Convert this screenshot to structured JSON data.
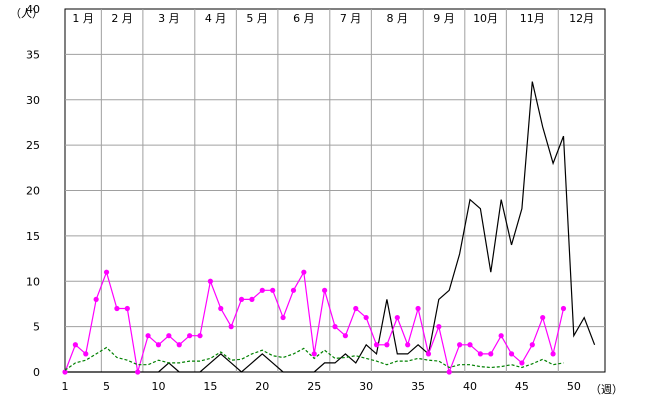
{
  "chart_data": {
    "type": "line",
    "ylabel": "（人）",
    "xlabel": "（週）",
    "ylim": [
      0,
      40
    ],
    "yticks": [
      0,
      5,
      10,
      15,
      20,
      25,
      30,
      35,
      40
    ],
    "xlim": [
      1,
      53
    ],
    "xticks": [
      1,
      5,
      10,
      15,
      20,
      25,
      30,
      35,
      40,
      45,
      50
    ],
    "grid": true,
    "months": [
      {
        "label": "1 月",
        "start_week": 1
      },
      {
        "label": "2 月",
        "start_week": 5
      },
      {
        "label": "3 月",
        "start_week": 9
      },
      {
        "label": "4 月",
        "start_week": 14
      },
      {
        "label": "5 月",
        "start_week": 18
      },
      {
        "label": "6 月",
        "start_week": 22
      },
      {
        "label": "7 月",
        "start_week": 27
      },
      {
        "label": "8 月",
        "start_week": 31
      },
      {
        "label": "9 月",
        "start_week": 36
      },
      {
        "label": "10月",
        "start_week": 40
      },
      {
        "label": "11月",
        "start_week": 44
      },
      {
        "label": "12月",
        "start_week": 49
      }
    ],
    "series": [
      {
        "color": "#000000",
        "style": "solid",
        "marker": "none",
        "x": [
          1,
          2,
          3,
          4,
          5,
          6,
          7,
          8,
          9,
          10,
          11,
          12,
          13,
          14,
          15,
          16,
          17,
          18,
          19,
          20,
          21,
          22,
          23,
          24,
          25,
          26,
          27,
          28,
          29,
          30,
          31,
          32,
          33,
          34,
          35,
          36,
          37,
          38,
          39,
          40,
          41,
          42,
          43,
          44,
          45,
          46,
          47,
          48,
          49,
          50,
          51,
          52
        ],
        "values": [
          0,
          0,
          0,
          0,
          0,
          0,
          0,
          0,
          0,
          0,
          1,
          0,
          0,
          0,
          1,
          2,
          1,
          0,
          1,
          2,
          1,
          0,
          0,
          0,
          0,
          1,
          1,
          2,
          1,
          3,
          2,
          8,
          2,
          2,
          3,
          2,
          8,
          9,
          13,
          19,
          18,
          11,
          19,
          14,
          18,
          32,
          27,
          23,
          26,
          4,
          6,
          3
        ]
      },
      {
        "color": "#FF00FF",
        "style": "solid",
        "marker": "circle",
        "x": [
          1,
          2,
          3,
          4,
          5,
          6,
          7,
          8,
          9,
          10,
          11,
          12,
          13,
          14,
          15,
          16,
          17,
          18,
          19,
          20,
          21,
          22,
          23,
          24,
          25,
          26,
          27,
          28,
          29,
          30,
          31,
          32,
          33,
          34,
          35,
          36,
          37,
          38,
          39,
          40,
          41,
          42,
          43,
          44,
          45,
          46,
          47,
          48,
          49
        ],
        "values": [
          0,
          3,
          2,
          8,
          11,
          7,
          7,
          0,
          4,
          3,
          4,
          3,
          4,
          4,
          10,
          7,
          5,
          8,
          8,
          9,
          9,
          6,
          9,
          11,
          2,
          9,
          5,
          4,
          7,
          6,
          3,
          3,
          6,
          3,
          7,
          2,
          5,
          0,
          3,
          3,
          2,
          2,
          4,
          2,
          1,
          3,
          6,
          2,
          7
        ]
      },
      {
        "color": "#008000",
        "style": "dashed",
        "marker": "none",
        "x": [
          1,
          2,
          3,
          4,
          5,
          6,
          7,
          8,
          9,
          10,
          11,
          12,
          13,
          14,
          15,
          16,
          17,
          18,
          19,
          20,
          21,
          22,
          23,
          24,
          25,
          26,
          27,
          28,
          29,
          30,
          31,
          32,
          33,
          34,
          35,
          36,
          37,
          38,
          39,
          40,
          41,
          42,
          43,
          44,
          45,
          46,
          47,
          48,
          49
        ],
        "values": [
          0.2,
          1.0,
          1.3,
          2.0,
          2.7,
          1.6,
          1.3,
          0.8,
          0.8,
          1.3,
          1.0,
          1.0,
          1.2,
          1.2,
          1.5,
          2.2,
          1.3,
          1.4,
          2.0,
          2.4,
          1.8,
          1.6,
          2.0,
          2.6,
          1.5,
          2.4,
          1.5,
          1.6,
          1.8,
          1.5,
          1.2,
          0.8,
          1.2,
          1.2,
          1.5,
          1.3,
          1.2,
          0.5,
          0.8,
          0.8,
          0.6,
          0.5,
          0.6,
          0.8,
          0.5,
          0.9,
          1.4,
          0.8,
          1.0
        ]
      }
    ]
  }
}
